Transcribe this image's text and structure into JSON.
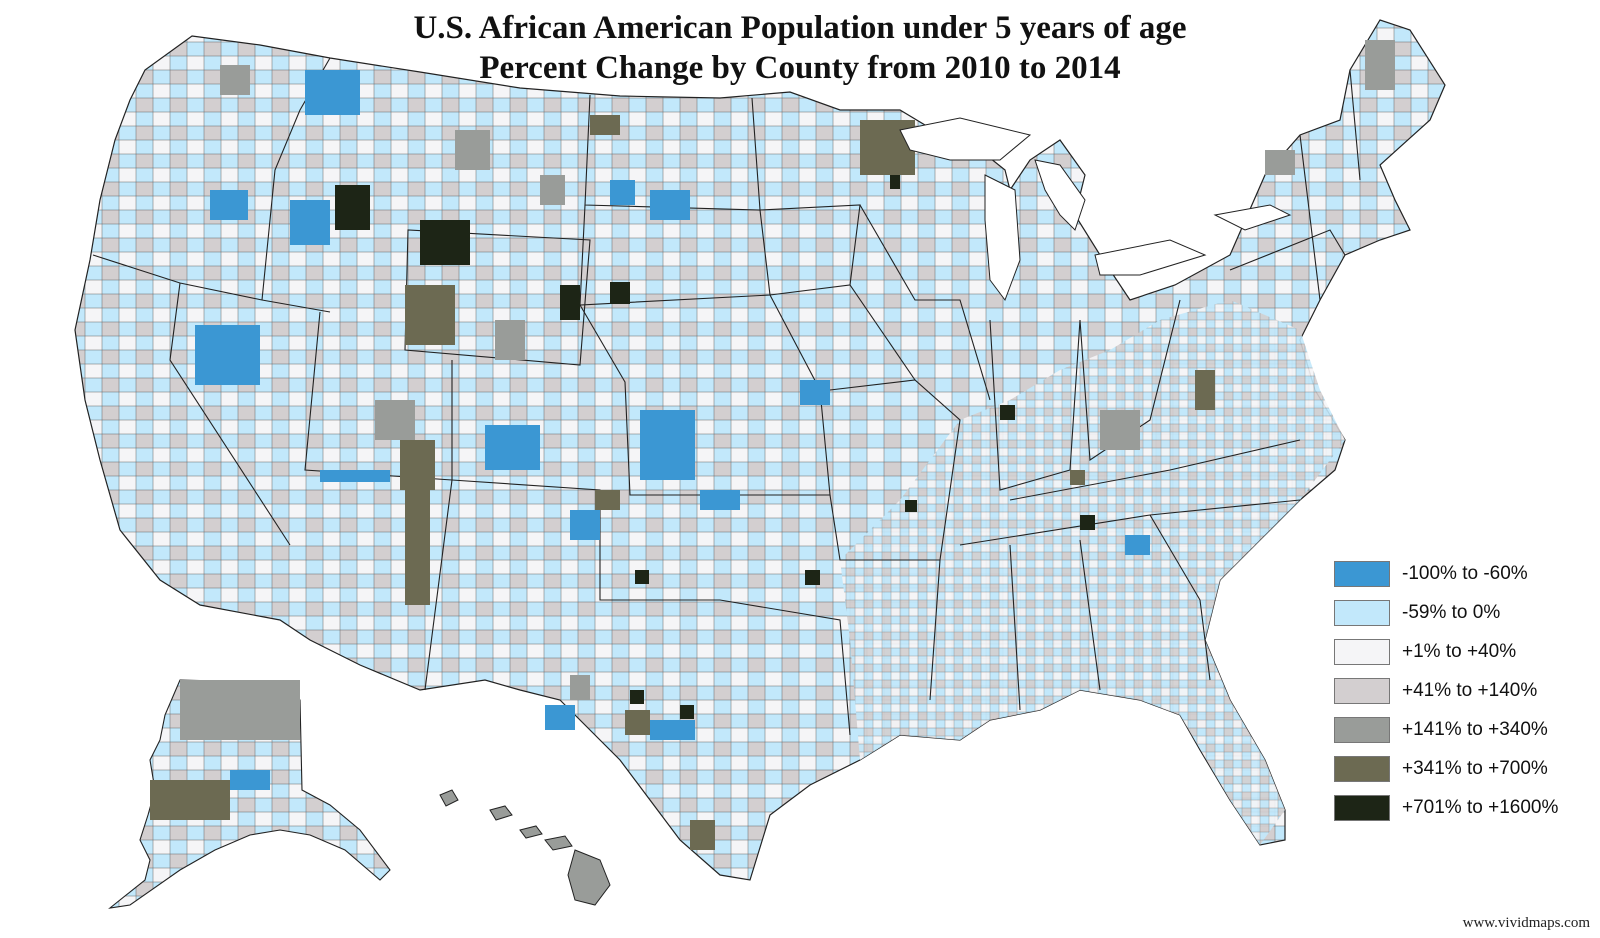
{
  "title": {
    "line1": "U.S. African American Population under 5 years of age",
    "line2": "Percent Change by County from 2010 to 2014"
  },
  "legend": [
    {
      "label": "-100% to -60%",
      "color": "#3b97d3"
    },
    {
      "label": "-59% to 0%",
      "color": "#c2e8fb"
    },
    {
      "label": "+1% to +40%",
      "color": "#f5f5f7"
    },
    {
      "label": "+41% to +140%",
      "color": "#d3cfd0"
    },
    {
      "label": "+141% to +340%",
      "color": "#999c99"
    },
    {
      "label": "+341% to +700%",
      "color": "#6c6a52"
    },
    {
      "label": "+701% to +1600%",
      "color": "#1d2516"
    }
  ],
  "credit": "www.vividmaps.com"
}
